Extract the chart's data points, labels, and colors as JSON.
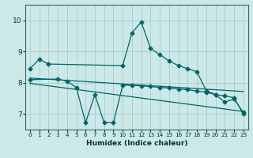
{
  "xlabel": "Humidex (Indice chaleur)",
  "bg_color": "#cce8e8",
  "grid_color": "#aacccc",
  "line_color": "#006666",
  "xlim": [
    -0.5,
    23.5
  ],
  "ylim": [
    6.5,
    10.5
  ],
  "yticks": [
    7,
    8,
    9,
    10
  ],
  "xticks": [
    0,
    1,
    2,
    3,
    4,
    5,
    6,
    7,
    8,
    9,
    10,
    11,
    12,
    13,
    14,
    15,
    16,
    17,
    18,
    19,
    20,
    21,
    22,
    23
  ],
  "series1_x": [
    0,
    1,
    2,
    10,
    11,
    12,
    13,
    14,
    15,
    16,
    17,
    18,
    19,
    20,
    21,
    22,
    23
  ],
  "series1_y": [
    8.45,
    8.75,
    8.6,
    8.55,
    9.6,
    9.95,
    9.1,
    8.9,
    8.7,
    8.55,
    8.45,
    8.35,
    7.75,
    7.62,
    7.38,
    7.48,
    7.05
  ],
  "series2_x": [
    0,
    3,
    4,
    5,
    6,
    7,
    8,
    9,
    10,
    11,
    12,
    13,
    14,
    15,
    16,
    17,
    18,
    19,
    20,
    21,
    22,
    23
  ],
  "series2_y": [
    8.1,
    8.12,
    8.05,
    7.85,
    6.72,
    7.62,
    6.72,
    6.72,
    7.92,
    7.92,
    7.9,
    7.88,
    7.85,
    7.83,
    7.8,
    7.78,
    7.73,
    7.7,
    7.62,
    7.58,
    7.52,
    7.0
  ],
  "series3_x": [
    0,
    23
  ],
  "series3_y": [
    8.15,
    7.72
  ],
  "series4_x": [
    0,
    23
  ],
  "series4_y": [
    7.98,
    7.08
  ]
}
